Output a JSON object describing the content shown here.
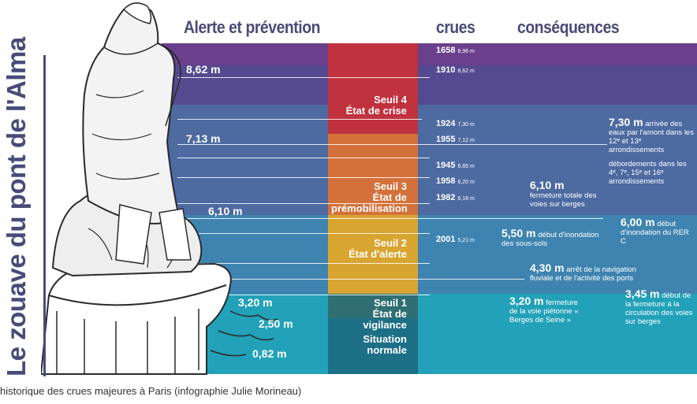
{
  "title_vertical": "Le zouave du pont de l'Alma",
  "headers": {
    "alerte": "Alerte et prévention",
    "crues": "crues",
    "consequences": "conséquences"
  },
  "colors": {
    "title": "#4a4a79",
    "band_top": "#6b3f8f",
    "band_mid": "#4c6fa4",
    "band_bottom": "#1fa3b8",
    "seuil4": "#c0323e",
    "seuil3": "#d4713a",
    "seuil2": "#d9a531",
    "seuil1": "#2f6f72",
    "normal": "#1d6f86"
  },
  "thresholds": [
    {
      "label": "Seuil 4\nÉtat de crise"
    },
    {
      "label": "Seuil 3\nÉtat de\nprémobilisation"
    },
    {
      "label": "Seuil 2\nÉtat d'alerte"
    },
    {
      "label": "Seuil 1\nÉtat de vigilance"
    },
    {
      "label": "Situation\nnormale"
    }
  ],
  "left_levels": [
    "8,62 m",
    "7,13 m",
    "6,10 m",
    "3,20 m",
    "2,50 m",
    "0,82 m"
  ],
  "floods": [
    {
      "year": "1658",
      "height": "8,96 m"
    },
    {
      "year": "1910",
      "height": "8,62 m"
    },
    {
      "year": "1924",
      "height": "7,30 m"
    },
    {
      "year": "1955",
      "height": "7,12 m"
    },
    {
      "year": "1945",
      "height": "6,85 m"
    },
    {
      "year": "1958",
      "height": "6,20 m"
    },
    {
      "year": "1982",
      "height": "6,18 m"
    },
    {
      "year": "2001",
      "height": "5,21 m"
    }
  ],
  "consequences": [
    {
      "level": "7,30 m",
      "text": "arrivée des eaux par l'amont dans les 12ᵉ et 13ᵉ arrondissements"
    },
    {
      "level": "",
      "text": "débordements dans les 4ᵉ, 7ᵉ, 15ᵉ et 16ᵉ arrondissements"
    },
    {
      "level": "6,10 m",
      "text": "fermeture totale des voies sur berges"
    },
    {
      "level": "6,00 m",
      "text": "début d'inondation du RER C"
    },
    {
      "level": "5,50 m",
      "text": "début d'inondation des sous-sols"
    },
    {
      "level": "4,30 m",
      "text": "arrêt de la navigation fluviale et de l'activité des ports"
    },
    {
      "level": "3,20 m",
      "text": "fermeture de la voie piétonne « Berges de Seine »"
    },
    {
      "level": "3,45 m",
      "text": "début de la fermeture à la circulation des voies sur berges"
    }
  ],
  "caption": "historique des crues majeures à Paris (infographie Julie Morineau)"
}
